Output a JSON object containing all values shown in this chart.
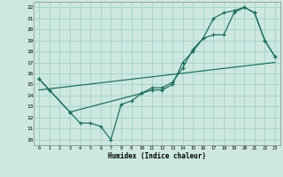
{
  "xlabel": "Humidex (Indice chaleur)",
  "bg_color": "#cce8e0",
  "grid_color": "#a8d4cc",
  "line_color": "#1a6b5a",
  "xlim": [
    -0.5,
    23.5
  ],
  "ylim": [
    9.5,
    22.5
  ],
  "xticks": [
    0,
    1,
    2,
    3,
    4,
    5,
    6,
    7,
    8,
    9,
    10,
    11,
    12,
    13,
    14,
    15,
    16,
    17,
    18,
    19,
    20,
    21,
    22,
    23
  ],
  "yticks": [
    10,
    11,
    12,
    13,
    14,
    15,
    16,
    17,
    18,
    19,
    20,
    21,
    22
  ],
  "line1_x": [
    0,
    1,
    3,
    4,
    5,
    6,
    7,
    8,
    9,
    10,
    11,
    12,
    13,
    14,
    15,
    16,
    17,
    18,
    19,
    20,
    21,
    22,
    23
  ],
  "line1_y": [
    15.5,
    14.5,
    12.5,
    11.5,
    11.5,
    11.2,
    10.0,
    13.2,
    13.5,
    14.2,
    14.5,
    14.5,
    15.0,
    17.0,
    18.0,
    19.2,
    19.5,
    19.5,
    21.5,
    22.0,
    21.5,
    19.0,
    17.5
  ],
  "line2_x": [
    0,
    1,
    3,
    10,
    11,
    12,
    13,
    14,
    15,
    16,
    17,
    18,
    19,
    20,
    21,
    22,
    23
  ],
  "line2_y": [
    15.5,
    14.5,
    12.5,
    14.2,
    14.7,
    14.7,
    15.2,
    16.5,
    18.2,
    19.2,
    21.0,
    21.5,
    21.7,
    22.0,
    21.5,
    19.0,
    17.5
  ],
  "line3_x": [
    0,
    23
  ],
  "line3_y": [
    14.5,
    17.0
  ]
}
